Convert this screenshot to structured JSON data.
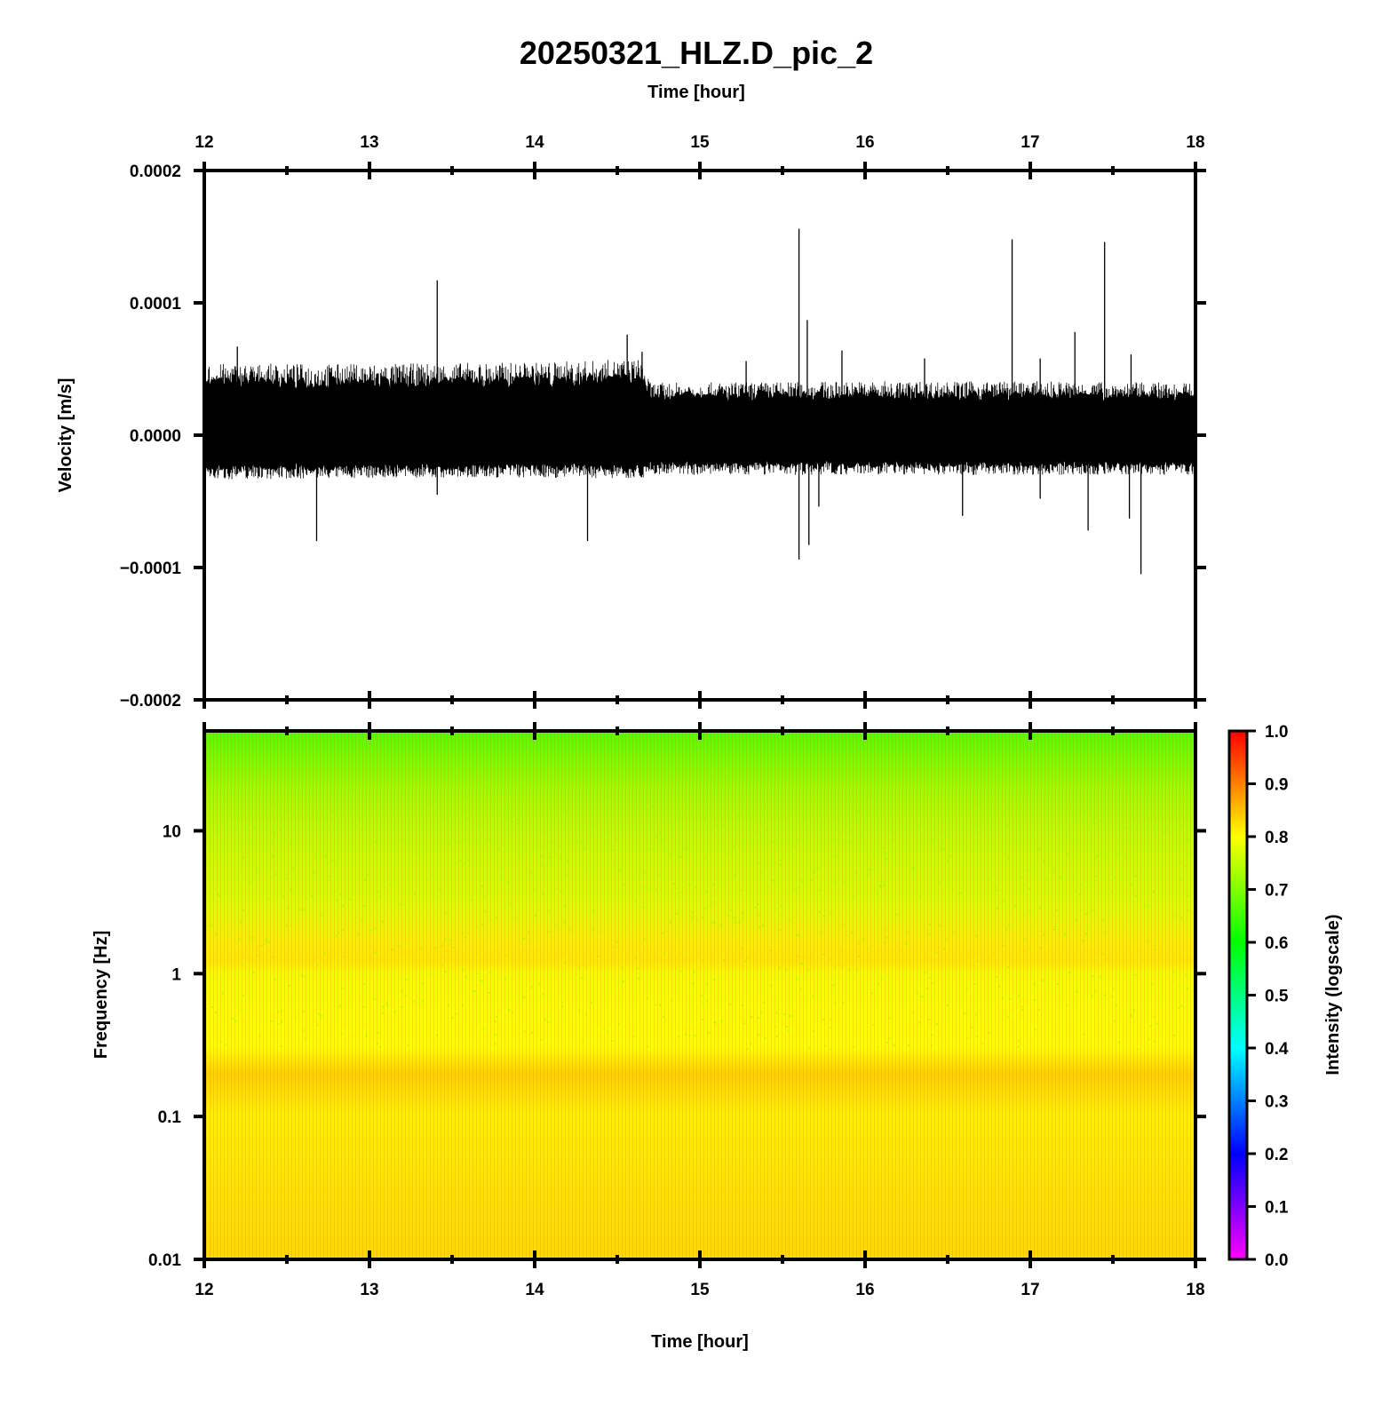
{
  "chart_data": [
    {
      "type": "line",
      "title": "20250321_HLZ.D_pic_2",
      "top_xlabel": "Time [hour]",
      "ylabel": "Velocity [m/s]",
      "xlim": [
        12,
        18
      ],
      "ylim": [
        -0.0002,
        0.0002
      ],
      "x_ticks": [
        "12",
        "13",
        "14",
        "15",
        "16",
        "17",
        "18"
      ],
      "y_ticks": [
        "0.0002",
        "0.0001",
        "0.0000",
        "−0.0001",
        "−0.0002"
      ],
      "series": [
        {
          "description_free": true,
          "noise_envelope": [
            {
              "x": 12.0,
              "upper": 4.5e-05,
              "lower": -2.8e-05
            },
            {
              "x": 13.0,
              "upper": 4.5e-05,
              "lower": -2.7e-05
            },
            {
              "x": 14.0,
              "upper": 4.6e-05,
              "lower": -2.7e-05
            },
            {
              "x": 14.65,
              "upper": 4.8e-05,
              "lower": -2.7e-05
            },
            {
              "x": 14.7,
              "upper": 3.3e-05,
              "lower": -2.5e-05
            },
            {
              "x": 16.0,
              "upper": 3.4e-05,
              "lower": -2.5e-05
            },
            {
              "x": 17.0,
              "upper": 3.4e-05,
              "lower": -2.5e-05
            },
            {
              "x": 18.0,
              "upper": 3.3e-05,
              "lower": -2.5e-05
            }
          ],
          "spikes": [
            {
              "x": 12.2,
              "y": 6.7e-05
            },
            {
              "x": 12.68,
              "y": -8e-05
            },
            {
              "x": 13.41,
              "y": 0.000117
            },
            {
              "x": 13.41,
              "y": -4.5e-05
            },
            {
              "x": 14.32,
              "y": -8e-05
            },
            {
              "x": 14.56,
              "y": 7.6e-05
            },
            {
              "x": 14.65,
              "y": 6.3e-05
            },
            {
              "x": 15.28,
              "y": 5.6e-05
            },
            {
              "x": 15.6,
              "y": 0.000156
            },
            {
              "x": 15.6,
              "y": -9.4e-05
            },
            {
              "x": 15.65,
              "y": 8.7e-05
            },
            {
              "x": 15.66,
              "y": -8.3e-05
            },
            {
              "x": 15.72,
              "y": -5.4e-05
            },
            {
              "x": 15.86,
              "y": 6.4e-05
            },
            {
              "x": 16.36,
              "y": 5.8e-05
            },
            {
              "x": 16.59,
              "y": -6.1e-05
            },
            {
              "x": 16.89,
              "y": 0.000148
            },
            {
              "x": 17.06,
              "y": 5.8e-05
            },
            {
              "x": 17.06,
              "y": -4.8e-05
            },
            {
              "x": 17.27,
              "y": 7.8e-05
            },
            {
              "x": 17.35,
              "y": -7.2e-05
            },
            {
              "x": 17.45,
              "y": 0.000146
            },
            {
              "x": 17.61,
              "y": 6.1e-05
            },
            {
              "x": 17.6,
              "y": -6.3e-05
            },
            {
              "x": 17.67,
              "y": -0.000105
            }
          ]
        }
      ]
    },
    {
      "type": "heatmap",
      "xlabel": "Time [hour]",
      "ylabel": "Frequency [Hz]",
      "xlim": [
        12,
        18
      ],
      "ylim": [
        0.01,
        50
      ],
      "y_scale": "log",
      "x_ticks": [
        "12",
        "13",
        "14",
        "15",
        "16",
        "17",
        "18"
      ],
      "y_ticks": [
        "10",
        "1",
        "0.1",
        "0.01"
      ],
      "colorbar": {
        "label": "Intensity (logscale)",
        "range": [
          0.0,
          1.0
        ],
        "ticks": [
          "1.0",
          "0.9",
          "0.8",
          "0.7",
          "0.6",
          "0.5",
          "0.4",
          "0.3",
          "0.2",
          "0.1",
          "0.0"
        ],
        "colormap": [
          "#ff00ff",
          "#0000ff",
          "#00ffff",
          "#00ff00",
          "#ffff00",
          "#ff0000"
        ]
      },
      "intensity_profile": [
        {
          "freq": 50,
          "intensity": 0.66
        },
        {
          "freq": 20,
          "intensity": 0.72
        },
        {
          "freq": 10,
          "intensity": 0.745
        },
        {
          "freq": 3,
          "intensity": 0.77
        },
        {
          "freq": 1.4,
          "intensity": 0.815
        },
        {
          "freq": 1.2,
          "intensity": 0.815
        },
        {
          "freq": 1,
          "intensity": 0.79
        },
        {
          "freq": 0.3,
          "intensity": 0.8
        },
        {
          "freq": 0.2,
          "intensity": 0.835
        },
        {
          "freq": 0.1,
          "intensity": 0.81
        },
        {
          "freq": 0.01,
          "intensity": 0.83
        }
      ],
      "colors": {
        "frame": "#000000",
        "trace": "#000000"
      }
    }
  ]
}
